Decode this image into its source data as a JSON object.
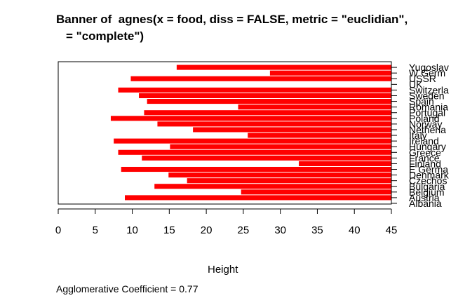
{
  "chart_data": {
    "type": "bar",
    "title_line1": "Banner of  agnes(x = food, diss = FALSE, metric = \"euclidian\",",
    "title_line2": "= \"complete\")",
    "xlabel": "Height",
    "xlim": [
      0,
      45
    ],
    "x_ticks": [
      "0",
      "5",
      "10",
      "15",
      "20",
      "25",
      "30",
      "35",
      "40",
      "45"
    ],
    "grid": false,
    "bar_color": "#ff0000",
    "categories": [
      "Albania",
      "Austria",
      "Belgium",
      "Bulgaria",
      "Czechoslovakia",
      "Denmark",
      "E Germany",
      "Finland",
      "France",
      "Greece",
      "Hungary",
      "Ireland",
      "Italy",
      "Netherlands",
      "Norway",
      "Poland",
      "Portugal",
      "Romania",
      "Spain",
      "Sweden",
      "Switzerland",
      "UK",
      "USSR",
      "W Germany",
      "Yugoslavia"
    ],
    "labels_shown": [
      "Albania",
      "Austria",
      "Belgium",
      "Bulgaria",
      "Czechos",
      "Denmark",
      "E Germa",
      "Finland",
      "France",
      "Greece",
      "Hungary",
      "Ireland",
      "Italy",
      "Netherla",
      "Norway",
      "Poland",
      "Portugal",
      "Romania",
      "Spain",
      "Sweden",
      "Switzerla",
      "UK",
      "USSR",
      "W Germ",
      "Yugoslav"
    ],
    "merge_heights": [
      9.0,
      24.7,
      13.0,
      17.4,
      14.9,
      8.5,
      32.5,
      11.3,
      8.1,
      15.1,
      7.5,
      25.6,
      18.2,
      13.4,
      7.1,
      11.6,
      24.3,
      12.0,
      10.9,
      8.1,
      45.0,
      9.8,
      28.6,
      16.0
    ]
  },
  "footnote": {
    "label": "Agglomerative Coefficient = ",
    "value": "0.77"
  }
}
